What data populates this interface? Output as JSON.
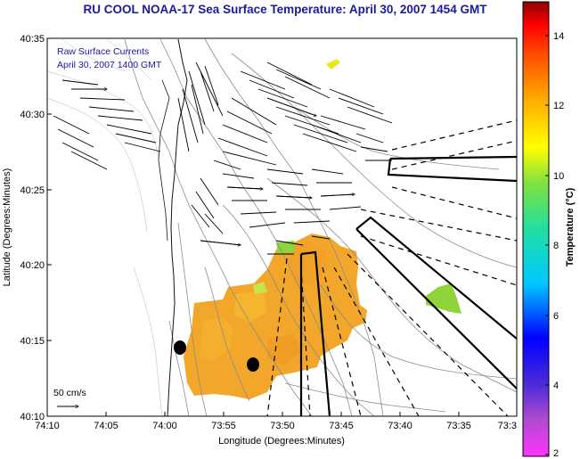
{
  "title": "RU COOL  NOAA-17  Sea Surface Temperature:  April 30, 2007 1454 GMT",
  "annotations": {
    "line1": "Raw Surface Currents",
    "line2": "April 30, 2007 1400 GMT",
    "scale_label": "50 cm/s"
  },
  "axes": {
    "xlabel": "Longitude (Degrees:Minutes)",
    "ylabel": "Latitude (Degrees:Minutes)",
    "xticks": [
      "74:10",
      "74:05",
      "74:00",
      "73:55",
      "73:50",
      "73:45",
      "73:40",
      "73:35",
      "73:3"
    ],
    "yticks": [
      "40:35",
      "40:30",
      "40:25",
      "40:20",
      "40:15",
      "40:10"
    ]
  },
  "colorbar": {
    "label": "Temperature (°C)",
    "ticks": [
      "14",
      "12",
      "10",
      "8",
      "6",
      "4",
      "2"
    ],
    "range": [
      2,
      15
    ]
  },
  "colors": {
    "title": "#1a1a9e",
    "contour": "#8c8c8c",
    "warm_patch": "#f2a62a",
    "cool_patch": "#8fd43a"
  }
}
